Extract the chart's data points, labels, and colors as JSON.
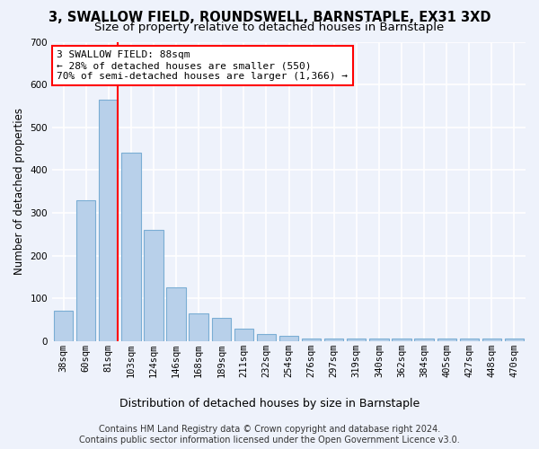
{
  "title": "3, SWALLOW FIELD, ROUNDSWELL, BARNSTAPLE, EX31 3XD",
  "subtitle": "Size of property relative to detached houses in Barnstaple",
  "xlabel": "Distribution of detached houses by size in Barnstaple",
  "ylabel": "Number of detached properties",
  "bar_values": [
    70,
    330,
    565,
    440,
    260,
    125,
    65,
    55,
    28,
    17,
    12,
    5,
    5,
    5,
    5,
    5,
    5,
    5,
    5,
    5,
    5
  ],
  "categories": [
    "38sqm",
    "60sqm",
    "81sqm",
    "103sqm",
    "124sqm",
    "146sqm",
    "168sqm",
    "189sqm",
    "211sqm",
    "232sqm",
    "254sqm",
    "276sqm",
    "297sqm",
    "319sqm",
    "340sqm",
    "362sqm",
    "384sqm",
    "405sqm",
    "427sqm",
    "448sqm",
    "470sqm"
  ],
  "bar_color": "#b8d0ea",
  "bar_edge_color": "#7aadd4",
  "red_line_x": 2,
  "annotation_text": "3 SWALLOW FIELD: 88sqm\n← 28% of detached houses are smaller (550)\n70% of semi-detached houses are larger (1,366) →",
  "ylim": [
    0,
    700
  ],
  "yticks": [
    0,
    100,
    200,
    300,
    400,
    500,
    600,
    700
  ],
  "footer_line1": "Contains HM Land Registry data © Crown copyright and database right 2024.",
  "footer_line2": "Contains public sector information licensed under the Open Government Licence v3.0.",
  "background_color": "#eef2fb",
  "plot_bg_color": "#eef2fb",
  "grid_color": "#ffffff",
  "title_fontsize": 10.5,
  "subtitle_fontsize": 9.5,
  "xlabel_fontsize": 9,
  "ylabel_fontsize": 8.5,
  "tick_fontsize": 7.5,
  "footer_fontsize": 7
}
